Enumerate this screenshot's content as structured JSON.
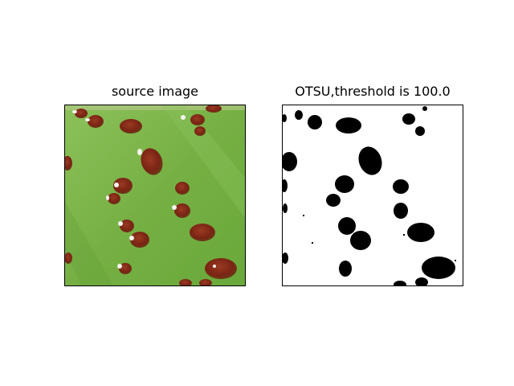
{
  "figure": {
    "panels": [
      {
        "title": "source image",
        "image_description": "green leaf surface with reddish-brown spots",
        "colors": {
          "leaf": "#7fb54a",
          "leaf_dark": "#5f9a34",
          "spot": "#8b2a18",
          "spot_dark": "#6e1c10",
          "highlight": "#f4f4ee"
        }
      },
      {
        "title": "OTSU,threshold is 100.0",
        "image_description": "binary mask: black blobs on white background",
        "colors": {
          "background": "#ffffff",
          "foreground": "#000000"
        }
      }
    ]
  }
}
